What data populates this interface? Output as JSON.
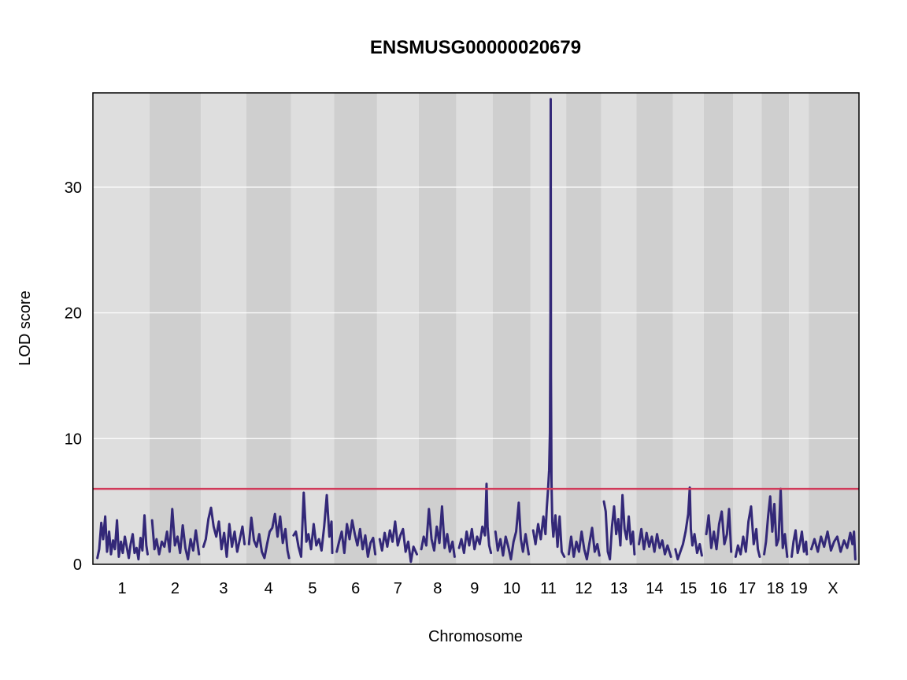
{
  "chart_data": {
    "type": "line",
    "title": "ENSMUSG00000020679",
    "xlabel": "Chromosome",
    "ylabel": "LOD score",
    "ylim": [
      0,
      37.5
    ],
    "y_ticks": [
      0,
      10,
      20,
      30
    ],
    "grid": true,
    "threshold": {
      "value": 6.0,
      "color": "#d13a5a"
    },
    "line_color": "#332878",
    "band_colors": [
      "#dedede",
      "#cfcfcf"
    ],
    "chromosomes": [
      {
        "name": "1",
        "length": 195
      },
      {
        "name": "2",
        "length": 182
      },
      {
        "name": "3",
        "length": 160
      },
      {
        "name": "4",
        "length": 156
      },
      {
        "name": "5",
        "length": 151
      },
      {
        "name": "6",
        "length": 150
      },
      {
        "name": "7",
        "length": 145
      },
      {
        "name": "8",
        "length": 130
      },
      {
        "name": "9",
        "length": 125
      },
      {
        "name": "10",
        "length": 130
      },
      {
        "name": "11",
        "length": 122
      },
      {
        "name": "12",
        "length": 120
      },
      {
        "name": "13",
        "length": 120
      },
      {
        "name": "14",
        "length": 125
      },
      {
        "name": "15",
        "length": 104
      },
      {
        "name": "16",
        "length": 98
      },
      {
        "name": "17",
        "length": 95
      },
      {
        "name": "18",
        "length": 91
      },
      {
        "name": "19",
        "length": 61
      },
      {
        "name": "X",
        "length": 171
      }
    ],
    "series": [
      {
        "chr": "1",
        "pos": [
          3,
          10,
          18,
          25,
          33,
          40,
          48,
          55,
          63,
          70,
          78,
          85,
          93,
          100,
          108,
          115,
          123,
          130,
          138,
          145,
          153,
          160,
          168,
          175,
          183,
          190,
          195
        ],
        "lod": [
          0.5,
          1.2,
          3.3,
          2.0,
          3.8,
          1.0,
          2.6,
          0.8,
          1.9,
          1.2,
          3.5,
          0.6,
          1.8,
          0.9,
          2.2,
          1.4,
          0.5,
          1.6,
          2.4,
          0.9,
          1.3,
          0.4,
          2.1,
          1.1,
          3.9,
          1.5,
          0.8
        ]
      },
      {
        "chr": "2",
        "pos": [
          3,
          12,
          20,
          30,
          40,
          50,
          60,
          70,
          80,
          90,
          100,
          110,
          120,
          130,
          140,
          150,
          160,
          170,
          182
        ],
        "lod": [
          3.5,
          1.2,
          2.0,
          0.8,
          1.8,
          1.4,
          2.6,
          1.0,
          4.4,
          1.5,
          2.2,
          0.9,
          3.1,
          1.3,
          0.4,
          2.0,
          1.1,
          2.7,
          0.8
        ]
      },
      {
        "chr": "3",
        "pos": [
          3,
          12,
          22,
          32,
          42,
          52,
          62,
          72,
          82,
          92,
          102,
          112,
          122,
          132,
          142,
          152,
          160
        ],
        "lod": [
          1.4,
          2.0,
          3.6,
          4.5,
          3.0,
          2.2,
          3.4,
          1.2,
          2.5,
          0.6,
          3.2,
          1.4,
          2.6,
          1.0,
          2.0,
          3.0,
          1.6
        ]
      },
      {
        "chr": "4",
        "pos": [
          3,
          12,
          22,
          32,
          42,
          52,
          62,
          72,
          82,
          92,
          102,
          112,
          122,
          132,
          142,
          150,
          156
        ],
        "lod": [
          1.6,
          3.7,
          1.9,
          1.4,
          2.4,
          1.0,
          0.5,
          1.6,
          2.6,
          2.9,
          4.0,
          2.2,
          3.8,
          1.7,
          2.8,
          1.1,
          0.5
        ]
      },
      {
        "chr": "5",
        "pos": [
          3,
          12,
          22,
          32,
          42,
          52,
          60,
          70,
          80,
          90,
          100,
          110,
          120,
          130,
          140,
          148,
          151
        ],
        "lod": [
          2.3,
          2.6,
          1.4,
          0.6,
          5.7,
          1.8,
          2.4,
          1.2,
          3.2,
          1.5,
          2.0,
          1.1,
          3.0,
          5.5,
          2.2,
          3.4,
          0.9
        ]
      },
      {
        "chr": "6",
        "pos": [
          3,
          12,
          22,
          32,
          42,
          52,
          62,
          72,
          82,
          92,
          102,
          112,
          122,
          132,
          142,
          150
        ],
        "lod": [
          1.0,
          1.8,
          2.6,
          0.9,
          3.2,
          2.0,
          3.5,
          2.4,
          1.5,
          2.8,
          1.2,
          2.3,
          0.6,
          1.7,
          2.1,
          0.8
        ]
      },
      {
        "chr": "7",
        "pos": [
          3,
          12,
          22,
          32,
          42,
          52,
          62,
          72,
          82,
          92,
          102,
          112,
          122,
          132,
          145
        ],
        "lod": [
          2.0,
          1.1,
          2.5,
          1.4,
          2.7,
          1.8,
          3.4,
          1.5,
          2.3,
          2.8,
          1.0,
          1.8,
          0.2,
          1.4,
          0.8
        ]
      },
      {
        "chr": "8",
        "pos": [
          3,
          12,
          22,
          32,
          42,
          52,
          62,
          72,
          82,
          92,
          102,
          112,
          122,
          130
        ],
        "lod": [
          1.2,
          2.2,
          1.5,
          4.4,
          2.0,
          1.1,
          3.0,
          1.7,
          4.6,
          1.3,
          2.4,
          1.0,
          1.8,
          0.6
        ]
      },
      {
        "chr": "9",
        "pos": [
          3,
          12,
          22,
          32,
          42,
          52,
          62,
          72,
          82,
          92,
          102,
          108,
          112,
          118,
          125
        ],
        "lod": [
          1.3,
          2.0,
          0.9,
          2.6,
          1.5,
          2.8,
          1.2,
          2.2,
          1.6,
          3.0,
          2.3,
          6.4,
          3.0,
          1.5,
          0.9
        ]
      },
      {
        "chr": "10",
        "pos": [
          3,
          12,
          22,
          32,
          42,
          52,
          62,
          72,
          82,
          92,
          100,
          108,
          118,
          130
        ],
        "lod": [
          2.6,
          1.1,
          2.0,
          0.7,
          2.2,
          1.4,
          0.4,
          1.8,
          2.6,
          4.9,
          2.0,
          1.0,
          2.4,
          0.8
        ]
      },
      {
        "chr": "11",
        "pos": [
          3,
          12,
          22,
          32,
          42,
          50,
          55,
          60,
          64,
          67,
          69,
          70,
          71,
          73,
          76,
          80,
          88,
          96,
          104,
          112,
          122
        ],
        "lod": [
          2.7,
          1.6,
          3.2,
          2.0,
          3.8,
          2.4,
          4.5,
          6.0,
          7.5,
          10.5,
          20.0,
          37.0,
          15.0,
          6.5,
          3.4,
          2.2,
          3.9,
          1.4,
          3.8,
          1.0,
          0.6
        ]
      },
      {
        "chr": "12",
        "pos": [
          3,
          12,
          22,
          32,
          42,
          52,
          62,
          72,
          82,
          92,
          102,
          112,
          120
        ],
        "lod": [
          0.8,
          2.2,
          0.6,
          1.8,
          1.0,
          2.6,
          1.2,
          0.4,
          1.7,
          2.9,
          1.0,
          1.6,
          0.7
        ]
      },
      {
        "chr": "13",
        "pos": [
          3,
          10,
          18,
          26,
          34,
          42,
          50,
          58,
          66,
          74,
          82,
          90,
          98,
          106,
          114,
          120
        ],
        "lod": [
          5.0,
          4.2,
          1.0,
          0.4,
          3.0,
          4.6,
          2.4,
          3.6,
          1.5,
          5.5,
          2.8,
          2.0,
          3.8,
          1.6,
          2.6,
          0.8
        ]
      },
      {
        "chr": "14",
        "pos": [
          3,
          12,
          22,
          32,
          42,
          52,
          62,
          72,
          82,
          92,
          102,
          112,
          125
        ],
        "lod": [
          1.6,
          2.8,
          1.2,
          2.5,
          1.4,
          2.2,
          1.0,
          2.4,
          1.3,
          1.9,
          0.8,
          1.5,
          0.6
        ]
      },
      {
        "chr": "15",
        "pos": [
          3,
          12,
          22,
          32,
          42,
          52,
          58,
          62,
          68,
          76,
          86,
          96,
          104
        ],
        "lod": [
          1.2,
          0.4,
          1.0,
          1.6,
          2.6,
          4.0,
          6.1,
          2.8,
          1.5,
          2.4,
          0.9,
          1.6,
          0.7
        ]
      },
      {
        "chr": "16",
        "pos": [
          3,
          12,
          22,
          32,
          42,
          52,
          62,
          72,
          82,
          90,
          98
        ],
        "lod": [
          2.4,
          3.9,
          1.3,
          2.6,
          1.2,
          3.2,
          4.2,
          1.6,
          2.4,
          4.4,
          1.0
        ]
      },
      {
        "chr": "17",
        "pos": [
          3,
          12,
          22,
          32,
          42,
          52,
          62,
          72,
          82,
          88,
          95
        ],
        "lod": [
          0.6,
          1.5,
          0.8,
          2.2,
          1.0,
          3.4,
          4.6,
          1.6,
          2.8,
          1.2,
          0.6
        ]
      },
      {
        "chr": "18",
        "pos": [
          3,
          10,
          18,
          26,
          34,
          42,
          50,
          58,
          66,
          74,
          82,
          91
        ],
        "lod": [
          0.8,
          1.8,
          3.8,
          5.4,
          2.6,
          4.8,
          1.5,
          2.0,
          6.0,
          1.3,
          2.4,
          0.6
        ]
      },
      {
        "chr": "19",
        "pos": [
          3,
          10,
          18,
          26,
          34,
          42,
          50,
          58,
          61
        ],
        "lod": [
          0.6,
          1.8,
          2.7,
          0.9,
          1.6,
          2.6,
          1.0,
          1.8,
          0.8
        ]
      },
      {
        "chr": "X",
        "pos": [
          3,
          15,
          28,
          40,
          52,
          65,
          78,
          90,
          102,
          115,
          128,
          140,
          152,
          160,
          166,
          171
        ],
        "lod": [
          1.2,
          2.0,
          1.0,
          2.2,
          1.4,
          2.6,
          1.1,
          1.8,
          2.2,
          1.0,
          1.9,
          1.3,
          2.5,
          1.6,
          2.6,
          0.4
        ]
      }
    ]
  }
}
